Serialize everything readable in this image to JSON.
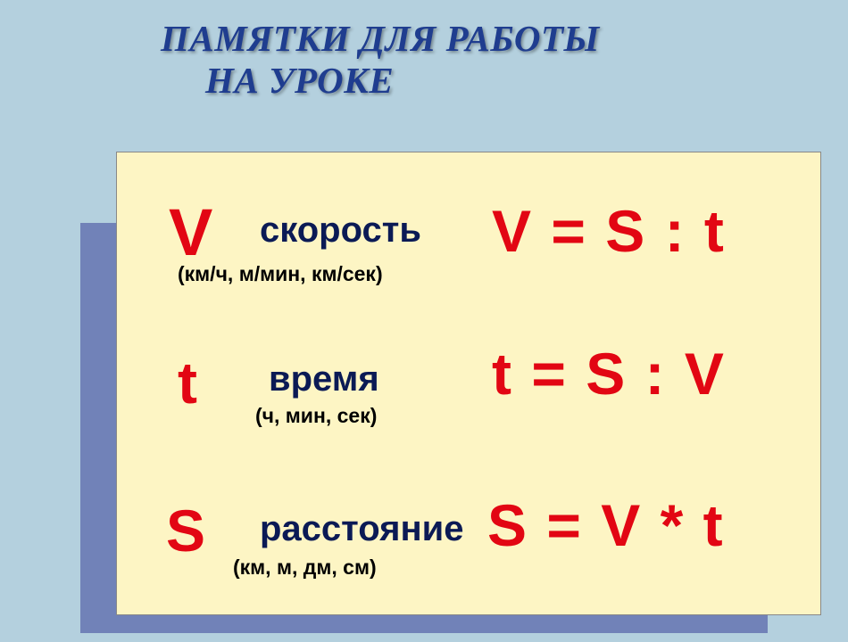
{
  "title": {
    "line1": "ПАМЯТКИ ДЛЯ РАБОТЫ",
    "line2": "НА УРОКЕ"
  },
  "rows": [
    {
      "symbol": "V",
      "label": "скорость",
      "sublabel": "(км/ч, м/мин, км/сек)",
      "formula": "V = S : t"
    },
    {
      "symbol": "t",
      "label": "время",
      "sublabel": "(ч, мин, сек)",
      "formula": "t = S : V"
    },
    {
      "symbol": "S",
      "label": "расстояние",
      "sublabel": "(км, м, дм, см)",
      "formula": "S = V * t"
    }
  ],
  "colors": {
    "page_bg": "#b4d0de",
    "panel_bg": "#7182b8",
    "card_bg": "#fdf5c4",
    "title_color": "#1f3d8f",
    "symbol_color": "#e20613",
    "label_color": "#0b1a55",
    "sublabel_color": "#000000",
    "formula_color": "#e20613"
  },
  "typography": {
    "title_fontsize": 41,
    "symbol_fontsize": 70,
    "label_fontsize": 40,
    "sublabel_fontsize": 23,
    "formula_fontsize": 66
  },
  "type": "infographic"
}
